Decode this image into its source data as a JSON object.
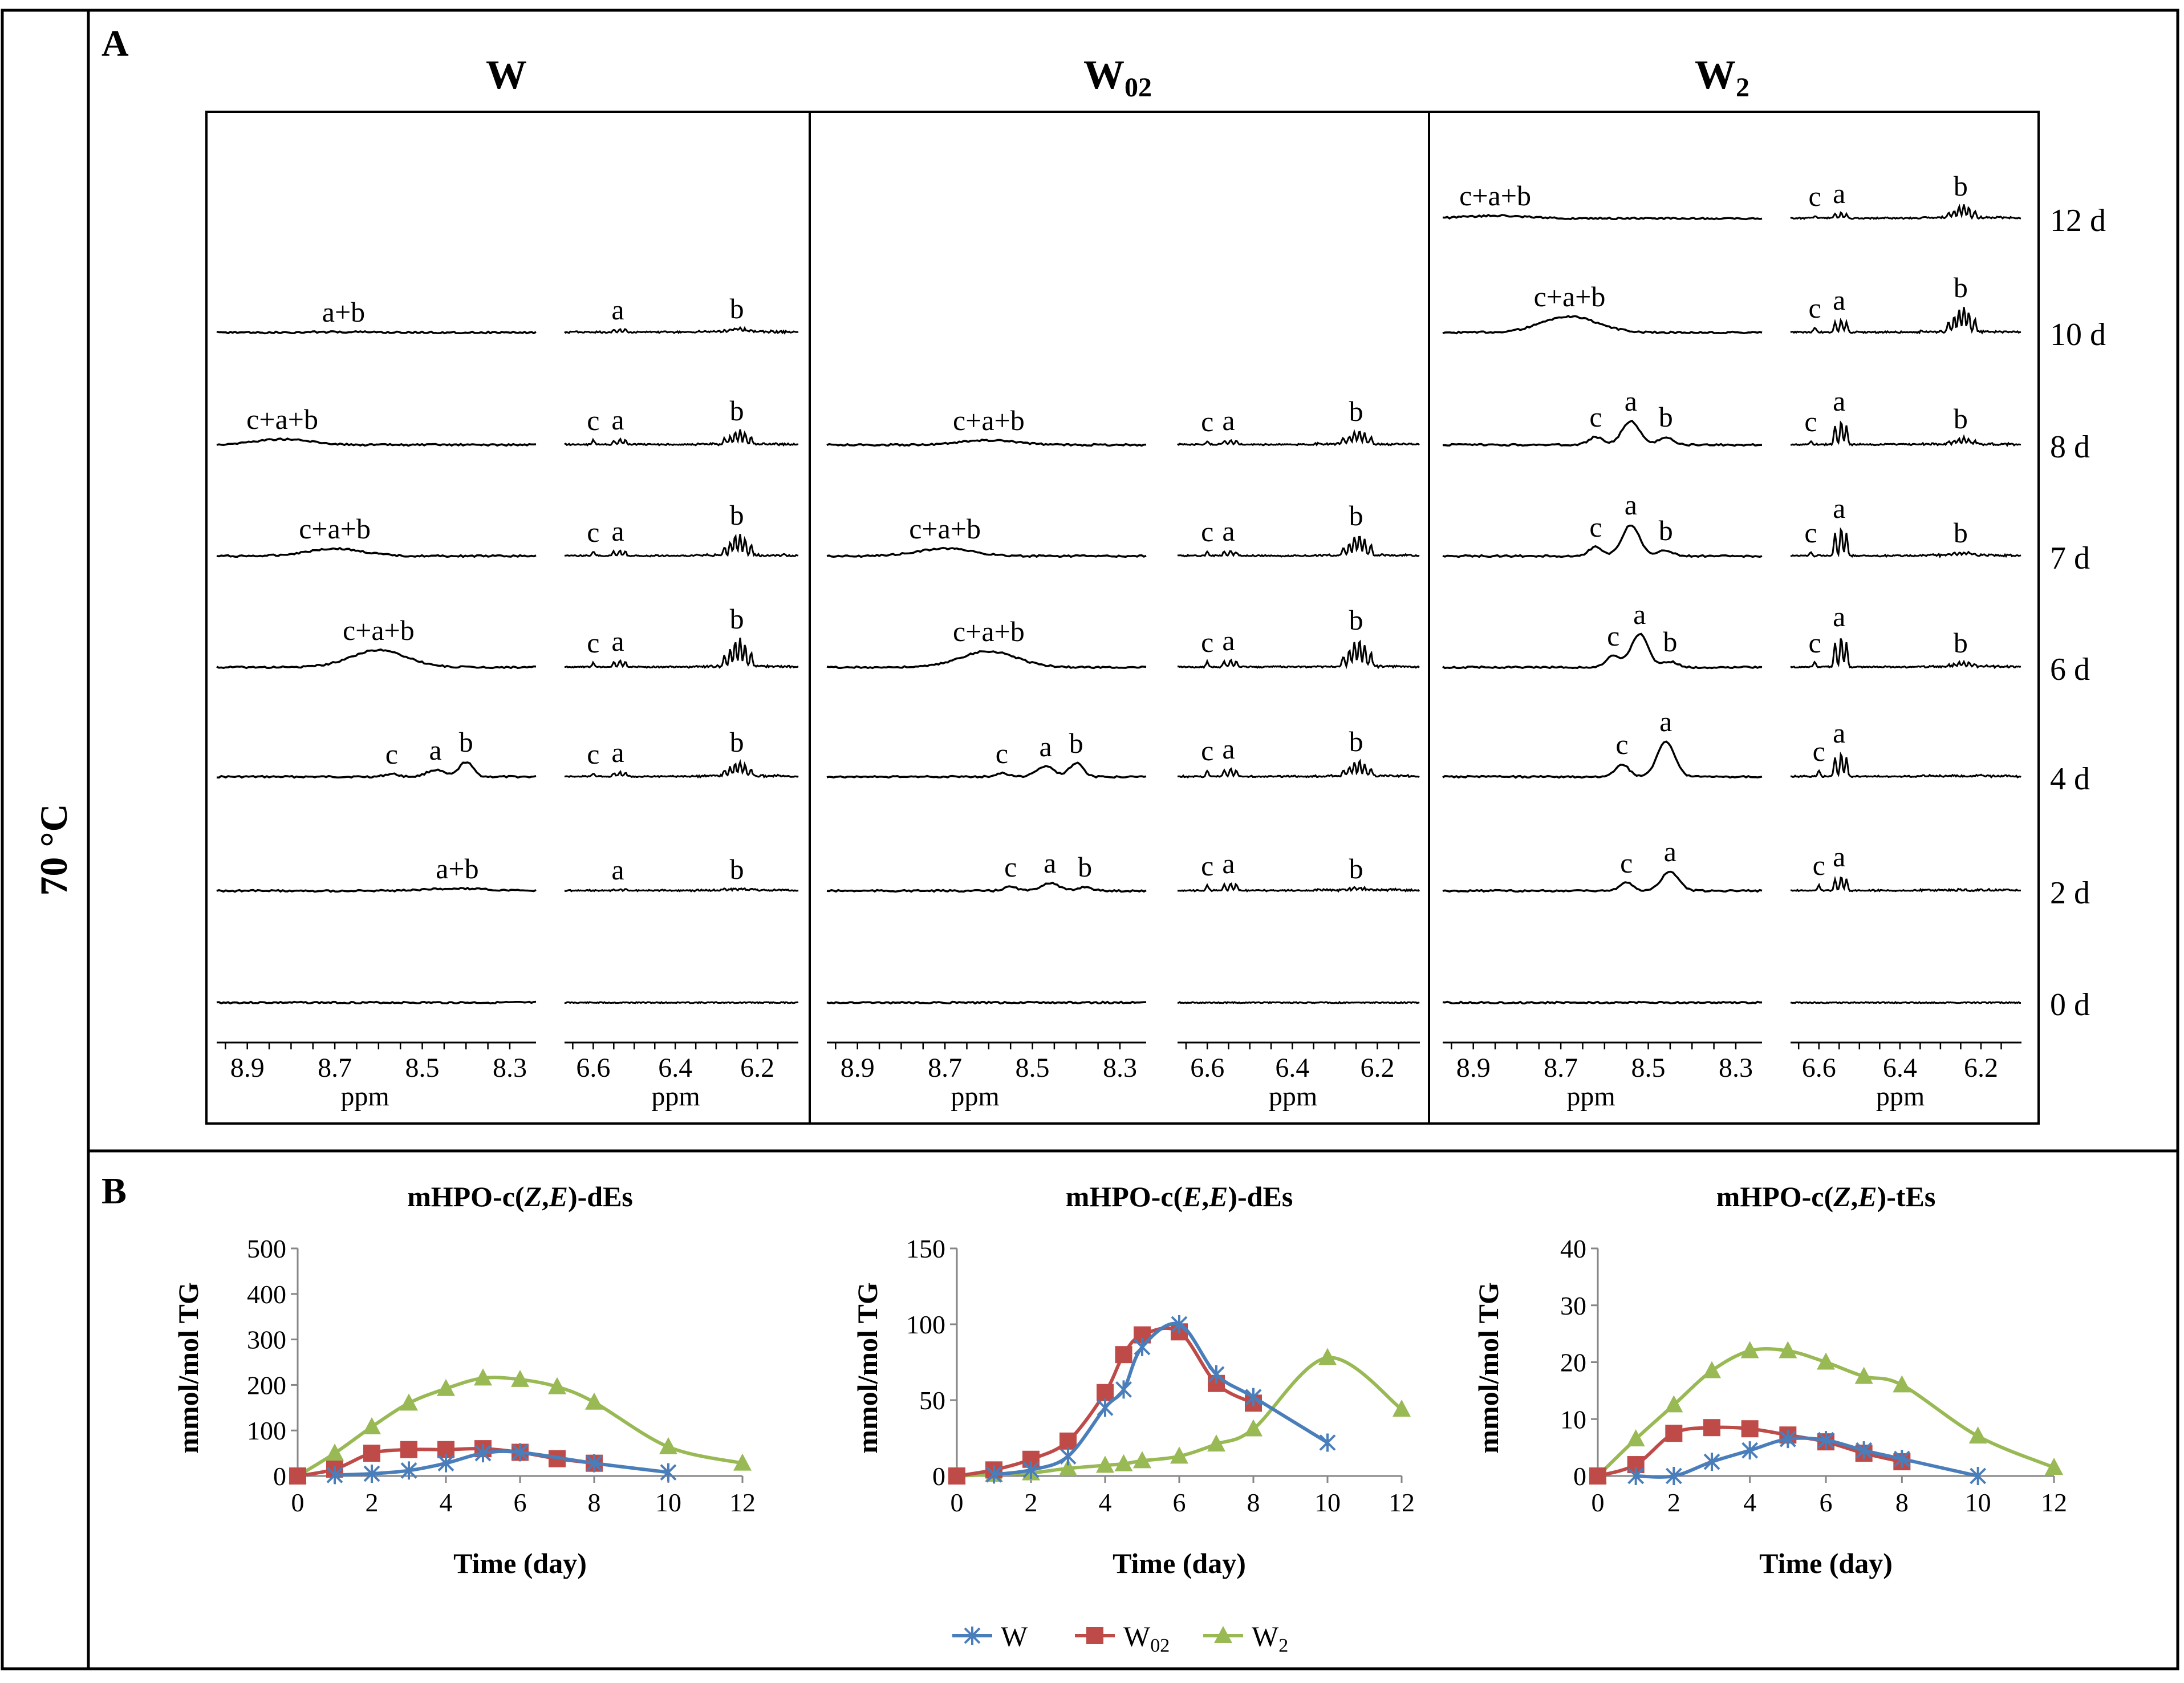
{
  "temperature_label": "70 °C",
  "panel_a": {
    "letter": "A",
    "columns": [
      {
        "key": "W",
        "title": "W",
        "sub": ""
      },
      {
        "key": "W02",
        "title": "W",
        "sub": "02"
      },
      {
        "key": "W2",
        "title": "W",
        "sub": "2"
      }
    ],
    "days": [
      "0 d",
      "2 d",
      "4 d",
      "6 d",
      "7 d",
      "8 d",
      "10 d",
      "12 d"
    ],
    "axis_left_ticks": [
      "8.9",
      "8.7",
      "8.5",
      "8.3"
    ],
    "axis_right_ticks": [
      "6.6",
      "6.4",
      "6.2"
    ],
    "axis_unit": "ppm",
    "spectra": {
      "W": [
        {
          "day": "0 d",
          "left": [],
          "right": []
        },
        {
          "day": "2 d",
          "left": [
            {
              "t": "a+b",
              "ppm": 8.42,
              "h": 4
            }
          ],
          "right": [
            {
              "t": "a",
              "ppm": 6.54,
              "h": 2
            },
            {
              "t": "b",
              "ppm": 6.25,
              "h": 3
            }
          ]
        },
        {
          "day": "4 d",
          "left": [
            {
              "t": "c",
              "ppm": 8.57,
              "h": 5
            },
            {
              "t": "a",
              "ppm": 8.47,
              "h": 12
            },
            {
              "t": "b",
              "ppm": 8.4,
              "h": 26
            }
          ],
          "right": [
            {
              "t": "c",
              "ppm": 6.6,
              "h": 5
            },
            {
              "t": "a",
              "ppm": 6.54,
              "h": 8
            },
            {
              "t": "b",
              "ppm": 6.25,
              "h": 26
            }
          ]
        },
        {
          "day": "6 d",
          "left": [
            {
              "t": "c+a+b",
              "ppm": 8.6,
              "h": 30
            }
          ],
          "right": [
            {
              "t": "c",
              "ppm": 6.6,
              "h": 8
            },
            {
              "t": "a",
              "ppm": 6.54,
              "h": 11
            },
            {
              "t": "b",
              "ppm": 6.25,
              "h": 50
            }
          ]
        },
        {
          "day": "7 d",
          "left": [
            {
              "t": "c+a+b",
              "ppm": 8.7,
              "h": 13
            }
          ],
          "right": [
            {
              "t": "c",
              "ppm": 6.6,
              "h": 7
            },
            {
              "t": "a",
              "ppm": 6.54,
              "h": 9
            },
            {
              "t": "b",
              "ppm": 6.25,
              "h": 37
            }
          ]
        },
        {
          "day": "8 d",
          "left": [
            {
              "t": "c+a+b",
              "ppm": 8.82,
              "h": 10
            }
          ],
          "right": [
            {
              "t": "c",
              "ppm": 6.6,
              "h": 8
            },
            {
              "t": "a",
              "ppm": 6.54,
              "h": 9
            },
            {
              "t": "b",
              "ppm": 6.25,
              "h": 25
            }
          ]
        },
        {
          "day": "10 d",
          "left": [
            {
              "t": "a+b",
              "ppm": 8.68,
              "h": 1
            }
          ],
          "right": [
            {
              "t": "a",
              "ppm": 6.54,
              "h": 5
            },
            {
              "t": "b",
              "ppm": 6.25,
              "h": 7
            }
          ]
        },
        {
          "day": "12 d",
          "left": [],
          "right": []
        }
      ],
      "W02": [
        {
          "day": "0 d",
          "left": [],
          "right": []
        },
        {
          "day": "2 d",
          "left": [
            {
              "t": "c",
              "ppm": 8.55,
              "h": 7
            },
            {
              "t": "a",
              "ppm": 8.46,
              "h": 14
            },
            {
              "t": "b",
              "ppm": 8.38,
              "h": 7
            }
          ],
          "right": [
            {
              "t": "c",
              "ppm": 6.6,
              "h": 9
            },
            {
              "t": "a",
              "ppm": 6.55,
              "h": 13
            },
            {
              "t": "b",
              "ppm": 6.25,
              "h": 4
            }
          ]
        },
        {
          "day": "4 d",
          "left": [
            {
              "t": "c",
              "ppm": 8.57,
              "h": 6
            },
            {
              "t": "a",
              "ppm": 8.47,
              "h": 18
            },
            {
              "t": "b",
              "ppm": 8.4,
              "h": 24
            }
          ],
          "right": [
            {
              "t": "c",
              "ppm": 6.6,
              "h": 11
            },
            {
              "t": "a",
              "ppm": 6.55,
              "h": 14
            },
            {
              "t": "b",
              "ppm": 6.25,
              "h": 27
            }
          ]
        },
        {
          "day": "6 d",
          "left": [
            {
              "t": "c+a+b",
              "ppm": 8.6,
              "h": 28
            }
          ],
          "right": [
            {
              "t": "c",
              "ppm": 6.6,
              "h": 9
            },
            {
              "t": "a",
              "ppm": 6.55,
              "h": 12
            },
            {
              "t": "b",
              "ppm": 6.25,
              "h": 48
            }
          ]
        },
        {
          "day": "7 d",
          "left": [
            {
              "t": "c+a+b",
              "ppm": 8.7,
              "h": 13
            }
          ],
          "right": [
            {
              "t": "c",
              "ppm": 6.6,
              "h": 8
            },
            {
              "t": "a",
              "ppm": 6.55,
              "h": 9
            },
            {
              "t": "b",
              "ppm": 6.25,
              "h": 36
            }
          ]
        },
        {
          "day": "8 d",
          "left": [
            {
              "t": "c+a+b",
              "ppm": 8.6,
              "h": 8
            }
          ],
          "right": [
            {
              "t": "c",
              "ppm": 6.6,
              "h": 6
            },
            {
              "t": "a",
              "ppm": 6.55,
              "h": 8
            },
            {
              "t": "b",
              "ppm": 6.25,
              "h": 24
            }
          ]
        },
        {
          "day": "10 d",
          "left": [],
          "right": []
        },
        {
          "day": "12 d",
          "left": [],
          "right": []
        }
      ],
      "W2": [
        {
          "day": "0 d",
          "left": [],
          "right": []
        },
        {
          "day": "2 d",
          "left": [
            {
              "t": "c",
              "ppm": 8.55,
              "h": 14
            },
            {
              "t": "a",
              "ppm": 8.45,
              "h": 34
            }
          ],
          "right": [
            {
              "t": "c",
              "ppm": 6.6,
              "h": 10
            },
            {
              "t": "a",
              "ppm": 6.55,
              "h": 25
            }
          ]
        },
        {
          "day": "4 d",
          "left": [
            {
              "t": "c",
              "ppm": 8.56,
              "h": 22
            },
            {
              "t": "a",
              "ppm": 8.46,
              "h": 62
            }
          ],
          "right": [
            {
              "t": "c",
              "ppm": 6.6,
              "h": 10
            },
            {
              "t": "a",
              "ppm": 6.55,
              "h": 42
            }
          ]
        },
        {
          "day": "6 d",
          "left": [
            {
              "t": "c",
              "ppm": 8.58,
              "h": 20
            },
            {
              "t": "a",
              "ppm": 8.52,
              "h": 58
            },
            {
              "t": "b",
              "ppm": 8.45,
              "h": 10
            }
          ],
          "right": [
            {
              "t": "c",
              "ppm": 6.61,
              "h": 8
            },
            {
              "t": "a",
              "ppm": 6.55,
              "h": 54
            },
            {
              "t": "b",
              "ppm": 6.25,
              "h": 8
            }
          ]
        },
        {
          "day": "7 d",
          "left": [
            {
              "t": "c",
              "ppm": 8.62,
              "h": 16
            },
            {
              "t": "a",
              "ppm": 8.54,
              "h": 55
            },
            {
              "t": "b",
              "ppm": 8.46,
              "h": 10
            }
          ],
          "right": [
            {
              "t": "c",
              "ppm": 6.62,
              "h": 6
            },
            {
              "t": "a",
              "ppm": 6.55,
              "h": 49
            },
            {
              "t": "b",
              "ppm": 6.25,
              "h": 6
            }
          ]
        },
        {
          "day": "8 d",
          "left": [
            {
              "t": "c",
              "ppm": 8.62,
              "h": 14
            },
            {
              "t": "a",
              "ppm": 8.54,
              "h": 42
            },
            {
              "t": "b",
              "ppm": 8.46,
              "h": 14
            }
          ],
          "right": [
            {
              "t": "c",
              "ppm": 6.62,
              "h": 6
            },
            {
              "t": "a",
              "ppm": 6.55,
              "h": 42
            },
            {
              "t": "b",
              "ppm": 6.25,
              "h": 11
            }
          ]
        },
        {
          "day": "10 d",
          "left": [
            {
              "t": "c+a+b",
              "ppm": 8.68,
              "h": 28
            }
          ],
          "right": [
            {
              "t": "c",
              "ppm": 6.61,
              "h": 8
            },
            {
              "t": "a",
              "ppm": 6.55,
              "h": 22
            },
            {
              "t": "b",
              "ppm": 6.25,
              "h": 44
            }
          ]
        },
        {
          "day": "12 d",
          "left": [
            {
              "t": "c+a+b",
              "ppm": 8.85,
              "h": 5
            }
          ],
          "right": [
            {
              "t": "c",
              "ppm": 6.61,
              "h": 4
            },
            {
              "t": "a",
              "ppm": 6.55,
              "h": 9
            },
            {
              "t": "b",
              "ppm": 6.25,
              "h": 22
            }
          ]
        }
      ]
    }
  },
  "panel_b": {
    "letter": "B",
    "xlabel": "Time (day)",
    "ylabel": "mmol/mol TG",
    "legend": [
      {
        "name": "W",
        "sub": "",
        "color": "#4a7ebb",
        "marker": "star"
      },
      {
        "name": "W",
        "sub": "02",
        "color": "#be4b48",
        "marker": "square"
      },
      {
        "name": "W",
        "sub": "2",
        "color": "#98b954",
        "marker": "triangle"
      }
    ]
  },
  "chart_data": [
    {
      "type": "line",
      "title": "mHPO-c(Z,E)-dEs",
      "title_parts": {
        "pre": "mHPO-c(",
        "a": "Z",
        "sep": ",",
        "b": "E",
        "post": ")-dEs"
      },
      "xlabel": "Time (day)",
      "ylabel": "mmol/mol TG",
      "xlim": [
        0,
        12
      ],
      "ylim": [
        0,
        500
      ],
      "xticks": [
        0,
        2,
        4,
        6,
        8,
        10,
        12
      ],
      "yticks": [
        0,
        100,
        200,
        300,
        400,
        500
      ],
      "series": [
        {
          "name": "W",
          "x": [
            1,
            2,
            3,
            4,
            5,
            6,
            8,
            10
          ],
          "values": [
            2,
            5,
            12,
            28,
            50,
            52,
            28,
            8
          ]
        },
        {
          "name": "W02",
          "x": [
            0,
            1,
            2,
            3,
            4,
            5,
            6,
            7,
            8
          ],
          "values": [
            0,
            15,
            50,
            58,
            58,
            60,
            52,
            38,
            28
          ]
        },
        {
          "name": "W2",
          "x": [
            0,
            1,
            2,
            3,
            4,
            5,
            6,
            7,
            8,
            10,
            12
          ],
          "values": [
            0,
            50,
            108,
            160,
            192,
            215,
            212,
            196,
            162,
            64,
            28
          ]
        }
      ]
    },
    {
      "type": "line",
      "title": "mHPO-c(E,E)-dEs",
      "title_parts": {
        "pre": "mHPO-c(",
        "a": "E",
        "sep": ",",
        "b": "E",
        "post": ")-dEs"
      },
      "xlabel": "Time (day)",
      "ylabel": "mmol/mol TG",
      "xlim": [
        0,
        12
      ],
      "ylim": [
        0,
        150
      ],
      "xticks": [
        0,
        2,
        4,
        6,
        8,
        10,
        12
      ],
      "yticks": [
        0,
        50,
        100,
        150
      ],
      "series": [
        {
          "name": "W",
          "x": [
            1,
            2,
            3,
            4,
            4.5,
            5,
            6,
            7,
            8,
            10
          ],
          "values": [
            1,
            4,
            13,
            45,
            57,
            85,
            100,
            67,
            52,
            22
          ]
        },
        {
          "name": "W02",
          "x": [
            0,
            1,
            2,
            3,
            4,
            4.5,
            5,
            6,
            7,
            8
          ],
          "values": [
            0,
            4,
            11,
            23,
            55,
            80,
            93,
            95,
            61,
            48
          ]
        },
        {
          "name": "W2",
          "x": [
            0,
            1,
            2,
            3,
            4,
            4.5,
            5,
            6,
            7,
            8,
            10,
            12
          ],
          "values": [
            0,
            1,
            2,
            5,
            7,
            8,
            10,
            13,
            21,
            31,
            78,
            44
          ]
        }
      ]
    },
    {
      "type": "line",
      "title": "mHPO-c(Z,E)-tEs",
      "title_parts": {
        "pre": "mHPO-c(",
        "a": "Z",
        "sep": ",",
        "b": "E",
        "post": ")-tEs"
      },
      "xlabel": "Time (day)",
      "ylabel": "mmol/mol TG",
      "xlim": [
        0,
        12
      ],
      "ylim": [
        0,
        40
      ],
      "xticks": [
        0,
        2,
        4,
        6,
        8,
        10,
        12
      ],
      "yticks": [
        0,
        10,
        20,
        30,
        40
      ],
      "series": [
        {
          "name": "W",
          "x": [
            1,
            2,
            3,
            4,
            5,
            6,
            7,
            8,
            10
          ],
          "values": [
            0,
            0,
            2.5,
            4.5,
            6.5,
            6.3,
            4.5,
            3,
            0
          ]
        },
        {
          "name": "W02",
          "x": [
            0,
            1,
            2,
            3,
            4,
            5,
            6,
            7,
            8
          ],
          "values": [
            0,
            2,
            7.5,
            8.5,
            8.3,
            7.2,
            6,
            4,
            2.5
          ]
        },
        {
          "name": "W2",
          "x": [
            0,
            1,
            2,
            3,
            4,
            5,
            6,
            7,
            8,
            10,
            12
          ],
          "values": [
            0,
            6.5,
            12.5,
            18.5,
            22,
            22,
            20,
            17.5,
            16,
            7,
            1.5
          ]
        }
      ]
    }
  ]
}
